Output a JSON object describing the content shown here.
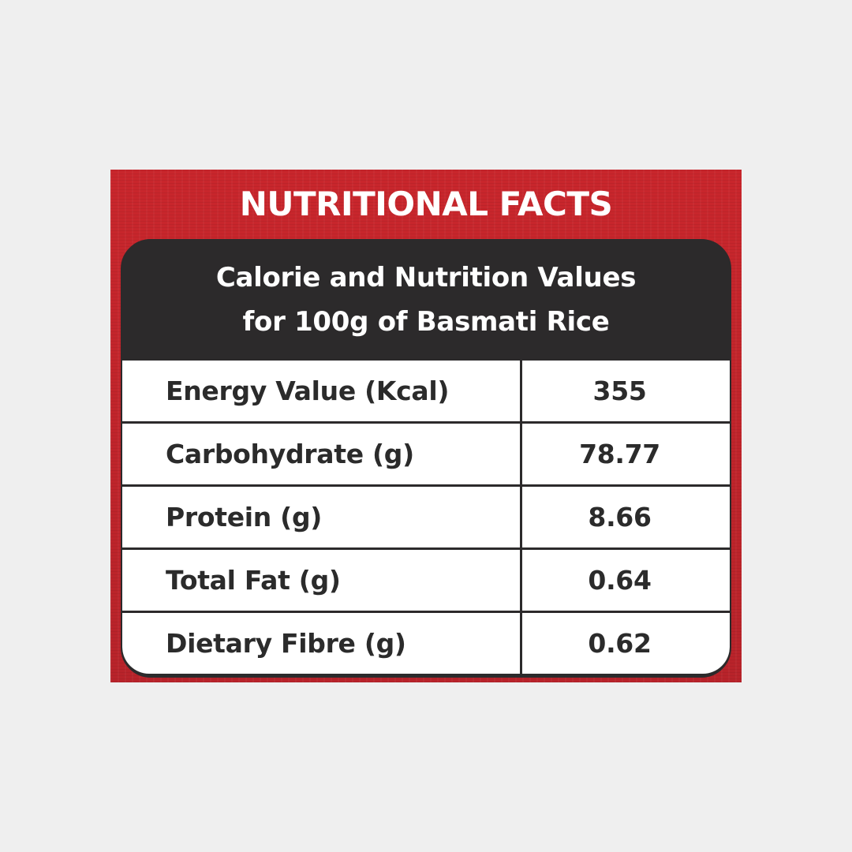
{
  "title": "NUTRITIONAL FACTS",
  "subtitle": {
    "line1": "Calorie and Nutrition Values",
    "line2": "for 100g of Basmati Rice"
  },
  "rows": [
    {
      "label": "Energy Value (Kcal)",
      "value": "355"
    },
    {
      "label": "Carbohydrate (g)",
      "value": "78.77"
    },
    {
      "label": "Protein (g)",
      "value": "8.66"
    },
    {
      "label": "Total Fat (g)",
      "value": "0.64"
    },
    {
      "label": "Dietary Fibre (g)",
      "value": "0.62"
    }
  ],
  "colors": {
    "background": "#efefef",
    "card_red": "#c0272d",
    "panel_dark": "#2c2a2b",
    "cell_white": "#ffffff",
    "text_dark": "#2b2b2b"
  }
}
